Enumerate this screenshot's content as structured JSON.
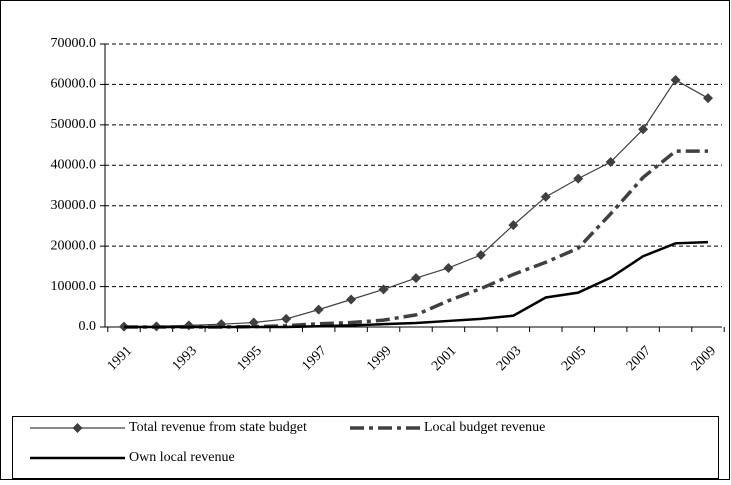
{
  "chart_data": {
    "type": "line",
    "categories": [
      "1991",
      null,
      "1993",
      null,
      "1995",
      null,
      "1997",
      null,
      "1999",
      null,
      "2001",
      null,
      "2003",
      null,
      "2005",
      null,
      "2007",
      null,
      "2009"
    ],
    "series": [
      {
        "name": "Total revenue from state budget",
        "color": "#404040",
        "marker": "diamond",
        "line_style": "solid",
        "values": [
          100,
          150,
          400,
          700,
          1100,
          2000,
          4300,
          6800,
          9300,
          12100,
          14600,
          17800,
          25200,
          32200,
          36700,
          40800,
          48900,
          61100,
          56600
        ]
      },
      {
        "name": "Local budget revenue",
        "color": "#404040",
        "marker": "none",
        "line_style": "dashdot",
        "values": [
          0,
          0,
          0,
          0,
          100,
          300,
          800,
          1100,
          1700,
          3000,
          6500,
          9500,
          13000,
          16000,
          19500,
          28000,
          37000,
          43500,
          43500
        ]
      },
      {
        "name": "Own local revenue",
        "color": "#000000",
        "marker": "none",
        "line_style": "solid",
        "values": [
          0,
          0,
          0,
          0,
          0,
          0,
          200,
          400,
          700,
          1000,
          1500,
          2000,
          2800,
          7300,
          8500,
          12200,
          17500,
          20700,
          21000
        ]
      }
    ],
    "ylim": [
      0,
      70000
    ],
    "yticks": [
      {
        "value": 0,
        "label": "0.0"
      },
      {
        "value": 10000,
        "label": "10000.0"
      },
      {
        "value": 20000,
        "label": "20000.0"
      },
      {
        "value": 30000,
        "label": "30000.0"
      },
      {
        "value": 40000,
        "label": "40000.0"
      },
      {
        "value": 50000,
        "label": "50000.0"
      },
      {
        "value": 60000,
        "label": "60000.0"
      },
      {
        "value": 70000,
        "label": "70000.0"
      }
    ],
    "grid": true,
    "legend": "bottom"
  }
}
